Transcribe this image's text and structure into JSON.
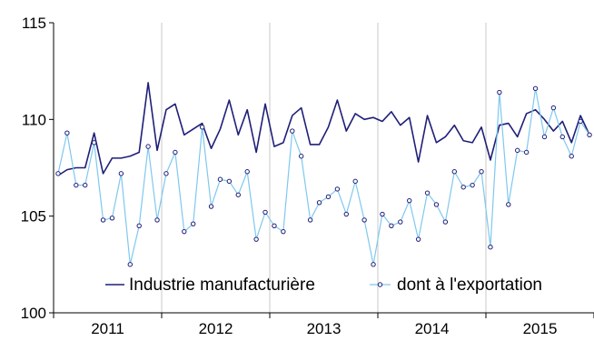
{
  "chart_data": {
    "type": "line",
    "title": "",
    "xlabel": "",
    "ylabel": "",
    "ylim": [
      100,
      115
    ],
    "y_ticks": [
      100,
      105,
      110,
      115
    ],
    "x_ticks": [
      "2011",
      "2012",
      "2013",
      "2014",
      "2015"
    ],
    "grid": "vertical separators between years",
    "legend": "bottom",
    "start": "2011-01",
    "x": [
      "2011-01",
      "2011-02",
      "2011-03",
      "2011-04",
      "2011-05",
      "2011-06",
      "2011-07",
      "2011-08",
      "2011-09",
      "2011-10",
      "2011-11",
      "2011-12",
      "2012-01",
      "2012-02",
      "2012-03",
      "2012-04",
      "2012-05",
      "2012-06",
      "2012-07",
      "2012-08",
      "2012-09",
      "2012-10",
      "2012-11",
      "2012-12",
      "2013-01",
      "2013-02",
      "2013-03",
      "2013-04",
      "2013-05",
      "2013-06",
      "2013-07",
      "2013-08",
      "2013-09",
      "2013-10",
      "2013-11",
      "2013-12",
      "2014-01",
      "2014-02",
      "2014-03",
      "2014-04",
      "2014-05",
      "2014-06",
      "2014-07",
      "2014-08",
      "2014-09",
      "2014-10",
      "2014-11",
      "2014-12",
      "2015-01",
      "2015-02",
      "2015-03",
      "2015-04",
      "2015-05",
      "2015-06",
      "2015-07",
      "2015-08",
      "2015-09",
      "2015-10",
      "2015-11",
      "2015-12"
    ],
    "series": [
      {
        "name": "Industrie manufacturière",
        "color": "#1f1f78",
        "marker": "none",
        "values": [
          107.1,
          107.4,
          107.5,
          107.5,
          109.3,
          107.2,
          108.0,
          108.0,
          108.1,
          108.3,
          111.9,
          108.4,
          110.5,
          110.8,
          109.2,
          109.5,
          109.8,
          108.5,
          109.5,
          111.0,
          109.2,
          110.5,
          108.3,
          110.8,
          108.6,
          108.8,
          110.2,
          110.6,
          108.7,
          108.7,
          109.6,
          111.0,
          109.4,
          110.3,
          110.0,
          110.1,
          109.9,
          110.4,
          109.7,
          110.1,
          107.8,
          110.2,
          108.8,
          109.1,
          109.7,
          108.9,
          108.8,
          109.6,
          107.9,
          109.7,
          109.8,
          109.1,
          110.3,
          110.5,
          110.0,
          109.4,
          109.9,
          108.8,
          110.2,
          109.2
        ]
      },
      {
        "name": "dont à l'exportation",
        "color": "#7fc8ef",
        "marker": "circle",
        "values": [
          107.2,
          109.3,
          106.6,
          106.6,
          108.8,
          104.8,
          104.9,
          107.2,
          102.5,
          104.5,
          108.6,
          104.8,
          107.2,
          108.3,
          104.2,
          104.6,
          109.6,
          105.5,
          106.9,
          106.8,
          106.1,
          107.3,
          103.8,
          105.2,
          104.5,
          104.2,
          109.4,
          108.1,
          104.8,
          105.7,
          106.0,
          106.4,
          105.1,
          106.8,
          104.8,
          102.5,
          105.1,
          104.5,
          104.7,
          105.8,
          103.8,
          106.2,
          105.6,
          104.7,
          107.3,
          106.5,
          106.6,
          107.3,
          103.4,
          111.4,
          105.6,
          108.4,
          108.3,
          111.6,
          109.1,
          110.6,
          109.1,
          108.1,
          109.9,
          109.2
        ]
      }
    ]
  }
}
